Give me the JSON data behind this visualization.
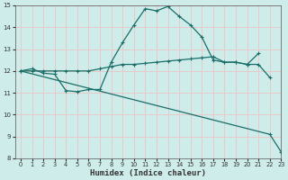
{
  "xlabel": "Humidex (Indice chaleur)",
  "bg_color": "#ceecea",
  "grid_color": "#e8c8c8",
  "line_color": "#1a6e68",
  "line1_x": [
    0,
    1,
    2,
    3,
    4,
    5,
    6,
    7,
    8,
    9,
    10,
    11,
    12,
    13,
    14,
    15,
    16,
    17,
    18,
    19,
    20,
    21,
    22
  ],
  "line1_y": [
    12.0,
    12.1,
    11.9,
    11.85,
    11.1,
    11.05,
    11.15,
    11.15,
    12.4,
    13.3,
    14.1,
    14.85,
    14.75,
    14.95,
    14.5,
    14.1,
    13.55,
    12.5,
    12.4,
    12.4,
    12.3,
    12.3,
    11.7
  ],
  "line2_x": [
    0,
    1,
    2,
    3,
    4,
    5,
    6,
    7,
    8,
    9,
    10,
    11,
    12,
    13,
    14,
    15,
    16,
    17,
    18,
    19,
    20,
    21
  ],
  "line2_y": [
    12.0,
    12.0,
    12.0,
    12.0,
    12.0,
    12.0,
    12.0,
    12.1,
    12.2,
    12.3,
    12.3,
    12.35,
    12.4,
    12.45,
    12.5,
    12.55,
    12.6,
    12.65,
    12.4,
    12.4,
    12.3,
    12.8
  ],
  "line3_x": [
    0,
    22,
    23
  ],
  "line3_y": [
    12.0,
    9.1,
    8.3
  ],
  "ylim": [
    8,
    15
  ],
  "xlim": [
    -0.5,
    23
  ],
  "yticks": [
    8,
    9,
    10,
    11,
    12,
    13,
    14,
    15
  ],
  "xticks": [
    0,
    1,
    2,
    3,
    4,
    5,
    6,
    7,
    8,
    9,
    10,
    11,
    12,
    13,
    14,
    15,
    16,
    17,
    18,
    19,
    20,
    21,
    22,
    23
  ]
}
